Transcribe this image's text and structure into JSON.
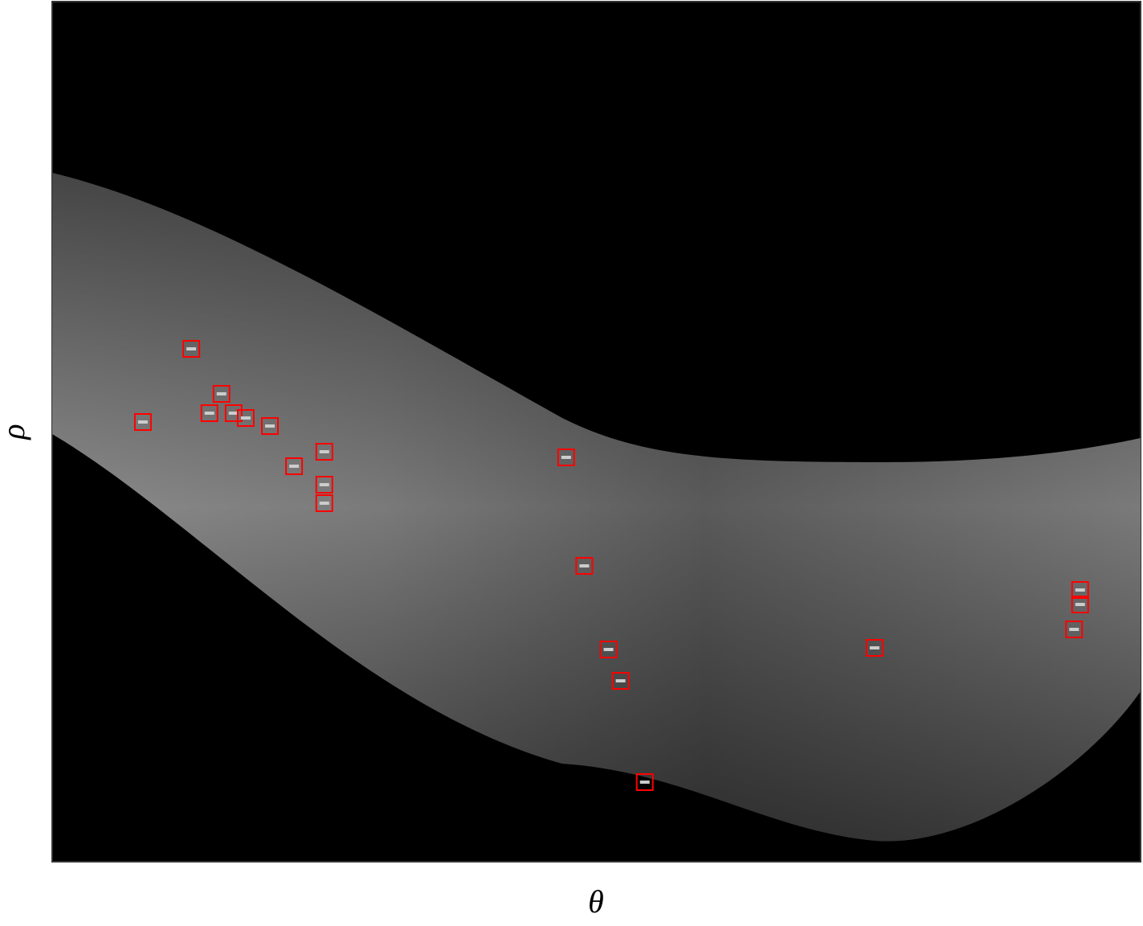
{
  "chart_data": {
    "type": "scatter",
    "xlabel": "θ",
    "ylabel": "ρ",
    "xlim": [
      -90,
      90
    ],
    "ylim": [
      -535,
      535
    ],
    "y_reversed": true,
    "color": "#ff0000",
    "x": [
      -67,
      -75,
      -62,
      -64,
      -60,
      -58,
      -54,
      -50,
      -45,
      -45,
      -45,
      -5,
      -2,
      2,
      4,
      8,
      46,
      80,
      80,
      79
    ],
    "values": [
      -103,
      -12,
      -47,
      -23,
      -23,
      -17,
      -7,
      43,
      25,
      66,
      89,
      32,
      167,
      271,
      310,
      436,
      269,
      197,
      215,
      246
    ]
  }
}
